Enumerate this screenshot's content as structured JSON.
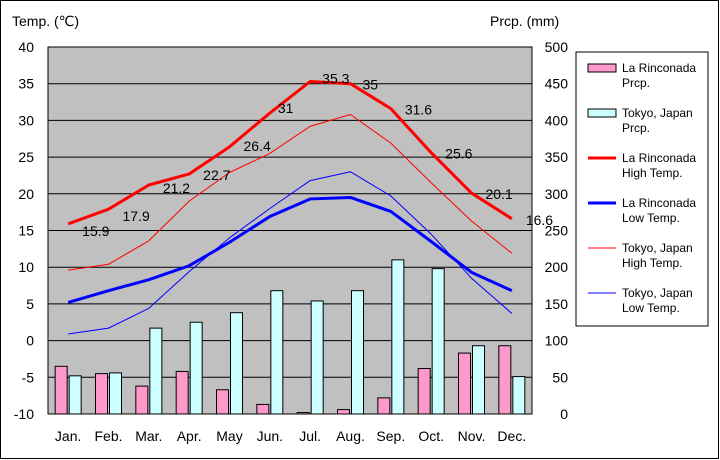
{
  "chart_data": {
    "type": "bar+line",
    "categories": [
      "Jan.",
      "Feb.",
      "Mar.",
      "Apr.",
      "May",
      "Jun.",
      "Jul.",
      "Aug.",
      "Sep.",
      "Oct.",
      "Nov.",
      "Dec."
    ],
    "left_axis": {
      "label": "Temp. (℃)",
      "min": -10,
      "max": 40,
      "step": 5
    },
    "right_axis": {
      "label": "Prcp. (mm)",
      "min": 0,
      "max": 500,
      "step": 50
    },
    "grid": true,
    "legend_placement": "right",
    "bar_series": [
      {
        "name": "La Rinconada\nPrcp.",
        "color": "#ff99cc",
        "values": [
          65,
          55,
          38,
          58,
          33,
          13,
          2,
          6,
          22,
          62,
          83,
          93
        ]
      },
      {
        "name": "Tokyo, Japan\nPrcp.",
        "color": "#ccffff",
        "values": [
          52,
          56,
          117,
          125,
          138,
          168,
          154,
          168,
          210,
          198,
          93,
          51
        ]
      }
    ],
    "line_series": [
      {
        "name": "La Rinconada\nHigh Temp.",
        "color": "#ff0000",
        "width": "thick",
        "values": [
          15.9,
          17.9,
          21.2,
          22.7,
          26.4,
          31,
          35.3,
          35,
          31.6,
          25.6,
          20.1,
          16.6
        ]
      },
      {
        "name": "La Rinconada\nLow Temp.",
        "color": "#0000ff",
        "width": "thick",
        "values": [
          5.2,
          6.8,
          8.3,
          10.2,
          13.4,
          16.9,
          19.3,
          19.5,
          17.6,
          13.5,
          9.3,
          6.8
        ]
      },
      {
        "name": "Tokyo, Japan\nHigh Temp.",
        "color": "#ff0000",
        "width": "thin",
        "values": [
          9.6,
          10.4,
          13.6,
          19.0,
          22.9,
          25.5,
          29.2,
          30.8,
          26.9,
          21.5,
          16.3,
          11.9
        ]
      },
      {
        "name": "Tokyo, Japan\nLow Temp.",
        "color": "#0000ff",
        "width": "thin",
        "values": [
          0.9,
          1.7,
          4.4,
          9.4,
          14.0,
          18.0,
          21.8,
          23.0,
          19.7,
          14.5,
          8.5,
          3.7
        ]
      }
    ],
    "data_labels": {
      "series": "La Rinconada\nHigh Temp.",
      "values": [
        "15.9",
        "17.9",
        "21.2",
        "22.7",
        "26.4",
        "31",
        "35.3",
        "35",
        "31.6",
        "25.6",
        "20.1",
        "16.6"
      ]
    }
  }
}
